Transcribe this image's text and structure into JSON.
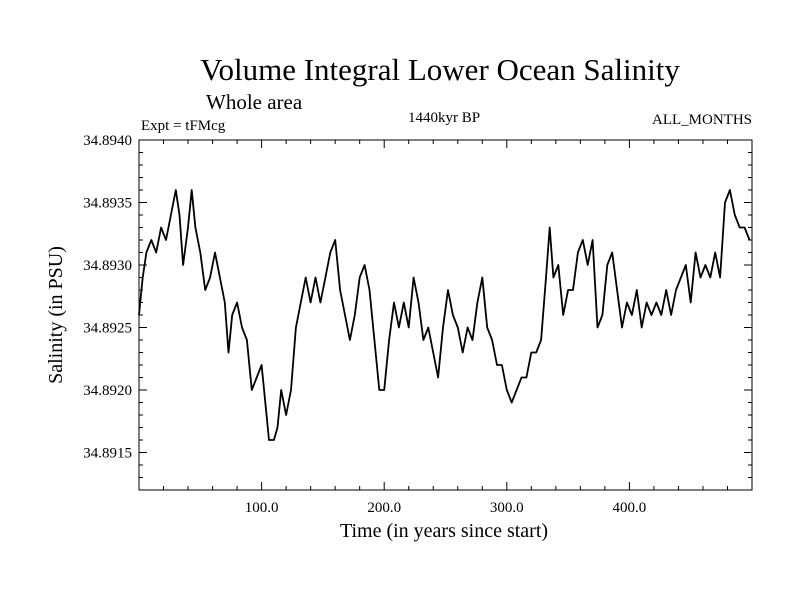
{
  "chart_data": {
    "type": "line",
    "title": "Volume Integral Lower Ocean Salinity",
    "subtitle": "Whole area",
    "experiment_label": "Expt = tFMcg",
    "period_label": "1440kyr BP",
    "months_label": "ALL_MONTHS",
    "xlabel": "Time (in years since start)",
    "ylabel": "Salinity (in PSU)",
    "xlim": [
      0,
      500
    ],
    "ylim": [
      34.8912,
      34.894
    ],
    "x_ticks": [
      100,
      200,
      300,
      400
    ],
    "x_tick_labels": [
      "100.0",
      "200.0",
      "300.0",
      "400.0"
    ],
    "y_ticks": [
      34.8915,
      34.892,
      34.8925,
      34.893,
      34.8935,
      34.894
    ],
    "y_tick_labels": [
      "34.8915",
      "34.8920",
      "34.8925",
      "34.8930",
      "34.8935",
      "34.8940"
    ],
    "grid": false,
    "series": [
      {
        "name": "Lower ocean salinity",
        "color": "#000000",
        "x": [
          0,
          3,
          6,
          10,
          14,
          18,
          22,
          26,
          30,
          33,
          36,
          40,
          43,
          46,
          50,
          54,
          58,
          62,
          66,
          70,
          73,
          76,
          80,
          84,
          88,
          92,
          96,
          100,
          103,
          106,
          110,
          113,
          116,
          120,
          124,
          128,
          132,
          136,
          140,
          144,
          148,
          152,
          156,
          160,
          164,
          168,
          172,
          176,
          180,
          184,
          188,
          192,
          196,
          200,
          204,
          208,
          212,
          216,
          220,
          224,
          228,
          232,
          236,
          240,
          244,
          248,
          252,
          256,
          260,
          264,
          268,
          272,
          276,
          280,
          284,
          288,
          292,
          296,
          300,
          304,
          308,
          312,
          316,
          320,
          324,
          328,
          332,
          335,
          338,
          342,
          346,
          350,
          354,
          358,
          362,
          366,
          370,
          374,
          378,
          382,
          386,
          390,
          394,
          398,
          402,
          406,
          410,
          414,
          418,
          422,
          426,
          430,
          434,
          438,
          442,
          446,
          450,
          454,
          458,
          462,
          466,
          470,
          474,
          478,
          482,
          486,
          490,
          494,
          498
        ],
        "y": [
          34.8926,
          34.8929,
          34.8931,
          34.8932,
          34.8931,
          34.8933,
          34.8932,
          34.8934,
          34.8936,
          34.8934,
          34.893,
          34.8933,
          34.8936,
          34.8933,
          34.8931,
          34.8928,
          34.8929,
          34.8931,
          34.8929,
          34.8927,
          34.8923,
          34.8926,
          34.8927,
          34.8925,
          34.8924,
          34.892,
          34.8921,
          34.8922,
          34.8919,
          34.8916,
          34.8916,
          34.8917,
          34.892,
          34.8918,
          34.892,
          34.8925,
          34.8927,
          34.8929,
          34.8927,
          34.8929,
          34.8927,
          34.8929,
          34.8931,
          34.8932,
          34.8928,
          34.8926,
          34.8924,
          34.8926,
          34.8929,
          34.893,
          34.8928,
          34.8924,
          34.892,
          34.892,
          34.8924,
          34.8927,
          34.8925,
          34.8927,
          34.8925,
          34.8929,
          34.8927,
          34.8924,
          34.8925,
          34.8923,
          34.8921,
          34.8925,
          34.8928,
          34.8926,
          34.8925,
          34.8923,
          34.8925,
          34.8924,
          34.8927,
          34.8929,
          34.8925,
          34.8924,
          34.8922,
          34.8922,
          34.892,
          34.8919,
          34.892,
          34.8921,
          34.8921,
          34.8923,
          34.8923,
          34.8924,
          34.8929,
          34.8933,
          34.8929,
          34.893,
          34.8926,
          34.8928,
          34.8928,
          34.8931,
          34.8932,
          34.893,
          34.8932,
          34.8925,
          34.8926,
          34.893,
          34.8931,
          34.8928,
          34.8925,
          34.8927,
          34.8926,
          34.8928,
          34.8925,
          34.8927,
          34.8926,
          34.8927,
          34.8926,
          34.8928,
          34.8926,
          34.8928,
          34.8929,
          34.893,
          34.8927,
          34.8931,
          34.8929,
          34.893,
          34.8929,
          34.8931,
          34.8929,
          34.8935,
          34.8936,
          34.8934,
          34.8933,
          34.8933,
          34.8932
        ]
      }
    ]
  }
}
